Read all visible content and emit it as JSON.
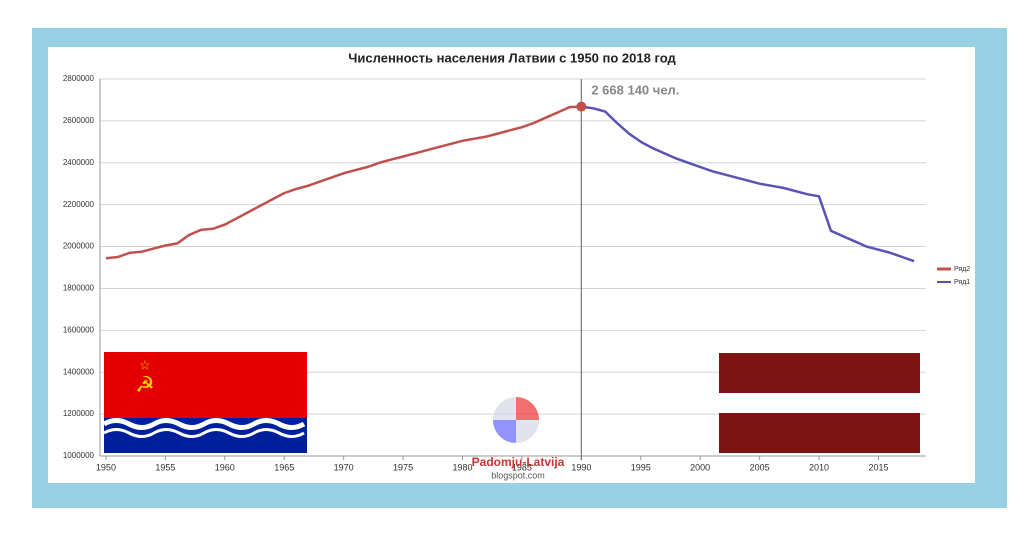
{
  "chart_data": {
    "type": "line",
    "title": "Численность населения Латвии с 1950 по 2018 год",
    "annotation": "2 668 140 чел.",
    "watermark": [
      "Padomju-Latvija",
      "blogspot.com"
    ],
    "x": [
      1950,
      1951,
      1952,
      1953,
      1954,
      1955,
      1956,
      1957,
      1958,
      1959,
      1960,
      1961,
      1962,
      1963,
      1964,
      1965,
      1966,
      1967,
      1968,
      1969,
      1970,
      1971,
      1972,
      1973,
      1974,
      1975,
      1976,
      1977,
      1978,
      1979,
      1980,
      1981,
      1982,
      1983,
      1984,
      1985,
      1986,
      1987,
      1988,
      1989,
      1990,
      1991,
      1992,
      1993,
      1994,
      1995,
      1996,
      1997,
      1998,
      1999,
      2000,
      2001,
      2002,
      2003,
      2004,
      2005,
      2006,
      2007,
      2008,
      2009,
      2010,
      2011,
      2012,
      2013,
      2014,
      2015,
      2016,
      2017,
      2018
    ],
    "series": [
      {
        "name": "Ряд2",
        "color": "#c0504d",
        "values": [
          1944000,
          1950000,
          1970000,
          1975000,
          1990000,
          2005000,
          2015000,
          2055000,
          2080000,
          2085000,
          2105000,
          2135000,
          2165000,
          2195000,
          2225000,
          2255000,
          2275000,
          2290000,
          2310000,
          2330000,
          2350000,
          2365000,
          2380000,
          2400000,
          2415000,
          2430000,
          2445000,
          2460000,
          2475000,
          2490000,
          2505000,
          2515000,
          2525000,
          2540000,
          2555000,
          2570000,
          2590000,
          2615000,
          2640000,
          2666000,
          2668140,
          null,
          null,
          null,
          null,
          null,
          null,
          null,
          null,
          null,
          null,
          null,
          null,
          null,
          null,
          null,
          null,
          null,
          null,
          null,
          null,
          null,
          null,
          null,
          null,
          null,
          null,
          null,
          null
        ]
      },
      {
        "name": "Ряд1",
        "color": "#5a52b4",
        "values": [
          null,
          null,
          null,
          null,
          null,
          null,
          null,
          null,
          null,
          null,
          null,
          null,
          null,
          null,
          null,
          null,
          null,
          null,
          null,
          null,
          null,
          null,
          null,
          null,
          null,
          null,
          null,
          null,
          null,
          null,
          null,
          null,
          null,
          null,
          null,
          null,
          null,
          null,
          null,
          null,
          2668140,
          2660000,
          2645000,
          2590000,
          2540000,
          2500000,
          2470000,
          2445000,
          2420000,
          2400000,
          2380000,
          2360000,
          2345000,
          2330000,
          2315000,
          2300000,
          2290000,
          2280000,
          2265000,
          2250000,
          2240000,
          2075000,
          2050000,
          2025000,
          2000000,
          1985000,
          1970000,
          1950000,
          1930000
        ]
      }
    ],
    "xlim": [
      1949.5,
      2019
    ],
    "xticks": [
      1950,
      1955,
      1960,
      1965,
      1970,
      1975,
      1980,
      1985,
      1990,
      1995,
      2000,
      2005,
      2010,
      2015
    ],
    "ylim": [
      1000000,
      2800000
    ],
    "yticks": [
      1000000,
      1200000,
      1400000,
      1600000,
      1800000,
      2000000,
      2200000,
      2400000,
      2600000,
      2800000
    ],
    "grid": true
  }
}
